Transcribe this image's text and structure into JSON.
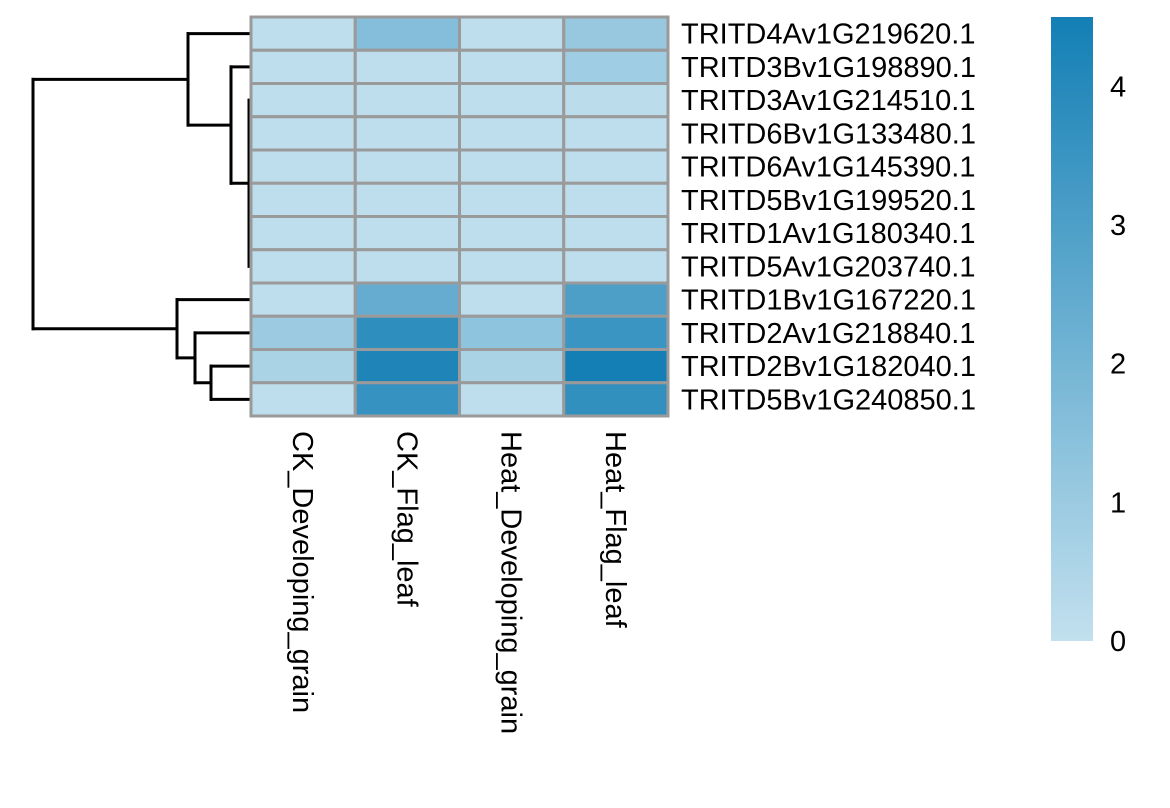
{
  "chart_data": {
    "type": "heatmap",
    "title": "",
    "rows": [
      "TRITD4Av1G219620.1",
      "TRITD3Bv1G198890.1",
      "TRITD3Av1G214510.1",
      "TRITD6Bv1G133480.1",
      "TRITD6Av1G145390.1",
      "TRITD5Bv1G199520.1",
      "TRITD1Av1G180340.1",
      "TRITD5Av1G203740.1",
      "TRITD1Bv1G167220.1",
      "TRITD2Av1G218840.1",
      "TRITD2Bv1G182040.1",
      "TRITD5Bv1G240850.1"
    ],
    "columns": [
      "CK_Developing_grain",
      "CK_Flag_leaf",
      "Heat_Developing_grain",
      "Heat_Flag_leaf"
    ],
    "values": [
      [
        0.1,
        1.6,
        0.1,
        1.1
      ],
      [
        0.1,
        0.1,
        0.1,
        0.9
      ],
      [
        0.1,
        0.1,
        0.1,
        0.2
      ],
      [
        0.1,
        0.1,
        0.1,
        0.1
      ],
      [
        0.1,
        0.1,
        0.1,
        0.1
      ],
      [
        0.1,
        0.1,
        0.1,
        0.1
      ],
      [
        0.1,
        0.1,
        0.1,
        0.1
      ],
      [
        0.1,
        0.1,
        0.1,
        0.1
      ],
      [
        0.1,
        2.4,
        0.1,
        3.0
      ],
      [
        1.0,
        3.8,
        1.3,
        3.5
      ],
      [
        0.6,
        4.2,
        0.6,
        4.5
      ],
      [
        0.1,
        3.6,
        0.1,
        3.7
      ]
    ],
    "color_scale": {
      "min": 0,
      "max": 4.5,
      "low_color": "#c2e0ee",
      "high_color": "#137fb5",
      "ticks": [
        0,
        1,
        2,
        3,
        4
      ]
    },
    "cell_border_color": "#9a9a9a",
    "row_dendrogram": "left",
    "legend_position": "right"
  }
}
